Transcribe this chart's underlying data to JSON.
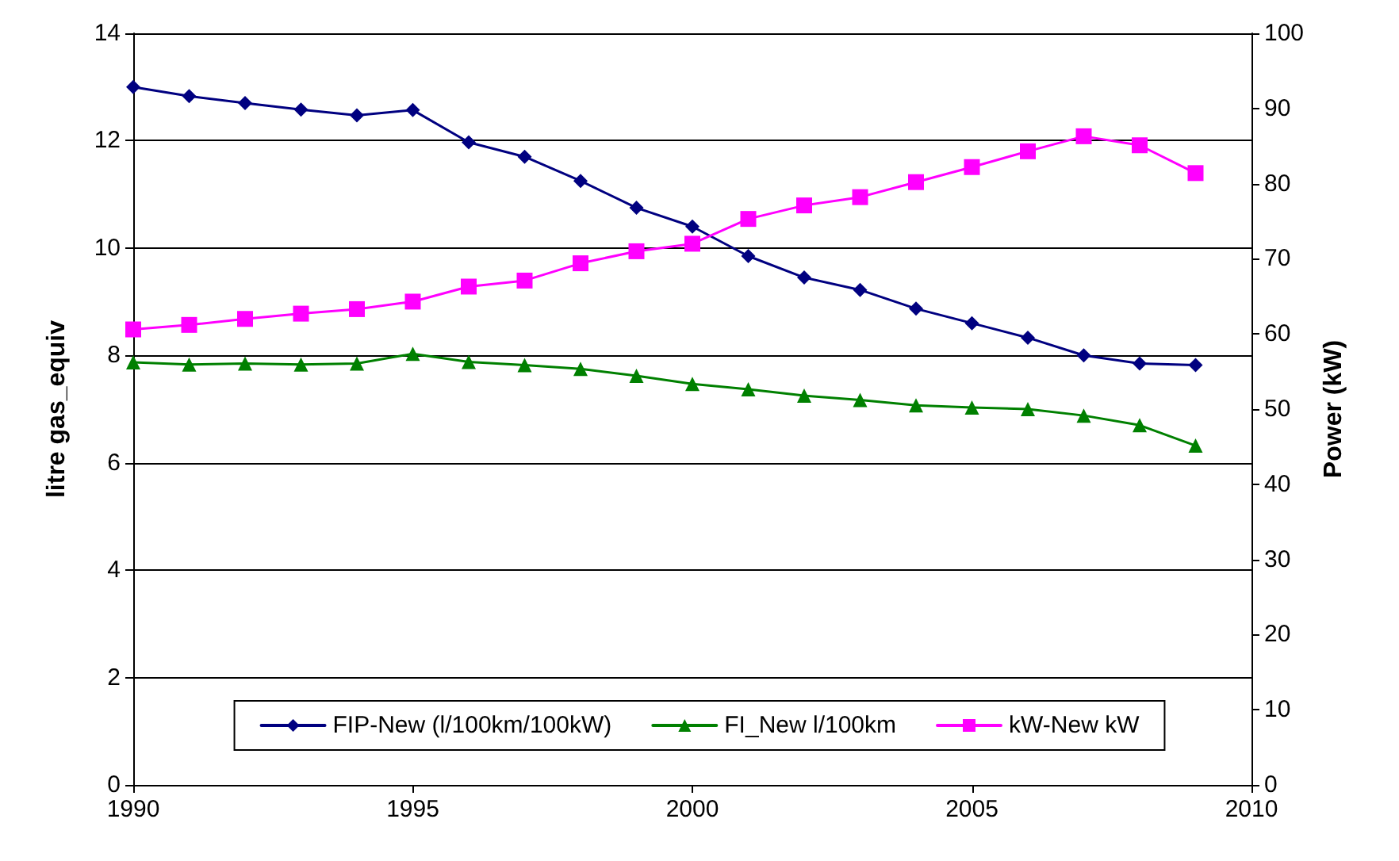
{
  "chart_data": {
    "type": "line",
    "ylabel": "litre gas_equiv",
    "y2label": "Power (kW)",
    "x": [
      1990,
      1991,
      1992,
      1993,
      1994,
      1995,
      1996,
      1997,
      1998,
      1999,
      2000,
      2001,
      2002,
      2003,
      2004,
      2005,
      2006,
      2007,
      2008,
      2009
    ],
    "series": [
      {
        "name": "FIP-New (l/100km/100kW)",
        "color": "#000080",
        "marker": "diamond",
        "values": [
          13.0,
          12.83,
          12.7,
          12.58,
          12.47,
          12.57,
          11.97,
          11.7,
          11.25,
          10.75,
          10.4,
          9.85,
          9.45,
          9.22,
          8.87,
          8.6,
          8.33,
          8.0,
          7.85,
          7.82
        ]
      },
      {
        "name": "FI_New l/100km",
        "color": "#008000",
        "marker": "triangle",
        "values": [
          7.87,
          7.83,
          7.85,
          7.83,
          7.85,
          8.03,
          7.88,
          7.82,
          7.75,
          7.62,
          7.47,
          7.37,
          7.25,
          7.17,
          7.07,
          7.03,
          7.0,
          6.88,
          6.7,
          6.32
        ]
      },
      {
        "name": "kW-New kW",
        "color": "#ff00ff",
        "marker": "square",
        "axis": "y2",
        "values": [
          60.6,
          61.2,
          62.0,
          62.7,
          63.3,
          64.3,
          66.3,
          67.1,
          69.4,
          71.0,
          72.0,
          75.3,
          77.1,
          78.2,
          80.2,
          82.2,
          84.3,
          86.3,
          85.1,
          81.4
        ]
      }
    ],
    "xlim": [
      1990,
      2010
    ],
    "xticks": [
      1990,
      1995,
      2000,
      2005,
      2010
    ],
    "ylim": [
      0,
      14
    ],
    "yticks": [
      0,
      2,
      4,
      6,
      8,
      10,
      12,
      14
    ],
    "y2lim": [
      0,
      100
    ],
    "y2ticks": [
      0,
      10,
      20,
      30,
      40,
      50,
      60,
      70,
      80,
      90,
      100
    ],
    "grid": "y",
    "legend": "bottom",
    "line_style": "solid"
  }
}
